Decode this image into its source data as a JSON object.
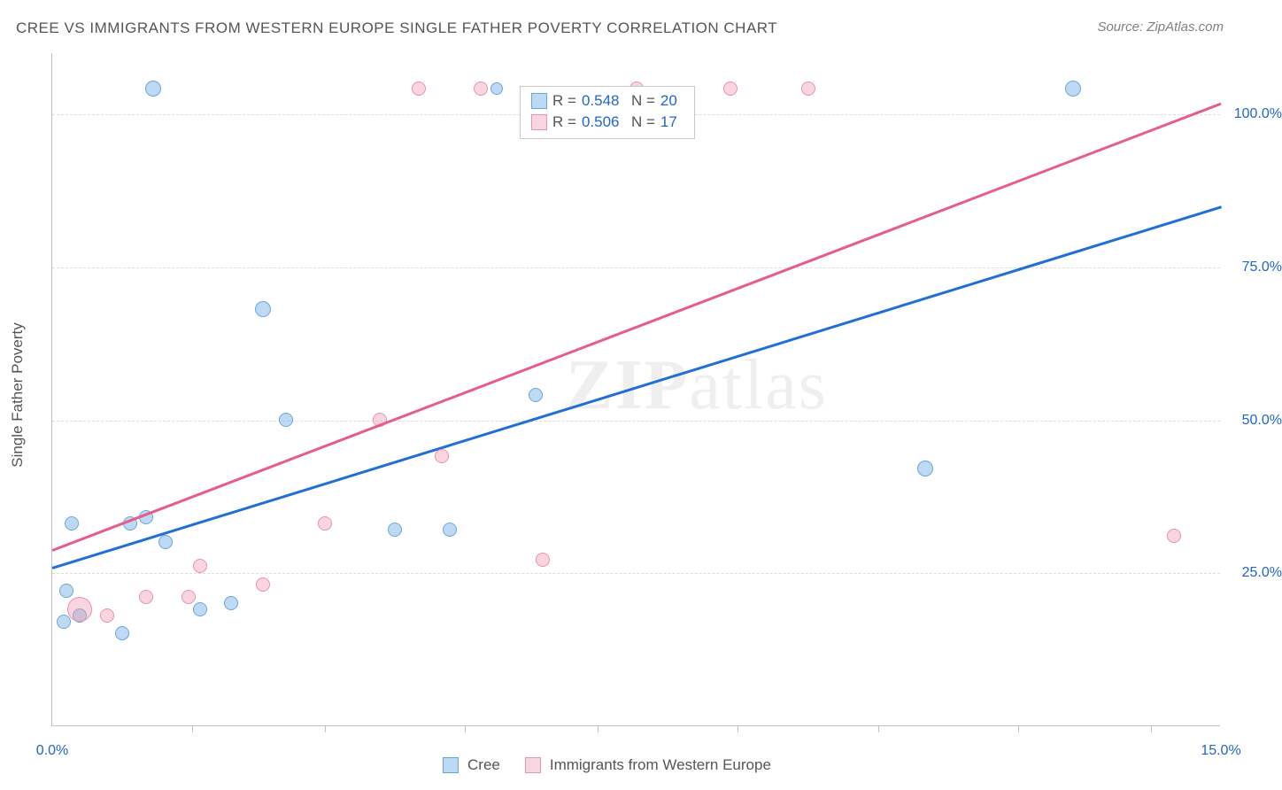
{
  "title": "CREE VS IMMIGRANTS FROM WESTERN EUROPE SINGLE FATHER POVERTY CORRELATION CHART",
  "source": "Source: ZipAtlas.com",
  "ylabel": "Single Father Poverty",
  "xmin_label": "0.0%",
  "xmax_label": "15.0%",
  "watermark_1": "ZIP",
  "watermark_2": "atlas",
  "chart": {
    "type": "scatter",
    "xlim": [
      0,
      15
    ],
    "ylim": [
      0,
      110
    ],
    "y_ticks": [
      25,
      50,
      75,
      100
    ],
    "y_tick_labels": [
      "25.0%",
      "50.0%",
      "75.0%",
      "100.0%"
    ],
    "x_ticks": [
      1.8,
      3.5,
      5.3,
      7.0,
      8.8,
      10.6,
      12.4,
      14.1
    ],
    "background_color": "#ffffff",
    "grid_color": "#dcdcdc",
    "axis_color": "#c0c0c0",
    "tick_label_color": "#2066c8",
    "series": [
      {
        "name": "Cree",
        "fill": "rgba(110,170,230,0.45)",
        "stroke": "#6aa6de",
        "trend_color": "#1f6fd6",
        "R": "0.548",
        "N": "20",
        "trend": {
          "x1": 0,
          "y1": 26,
          "x2": 15,
          "y2": 85
        },
        "points": [
          {
            "x": 0.15,
            "y": 17,
            "r": 8
          },
          {
            "x": 0.18,
            "y": 22,
            "r": 8
          },
          {
            "x": 0.25,
            "y": 33,
            "r": 8
          },
          {
            "x": 0.35,
            "y": 18,
            "r": 8
          },
          {
            "x": 0.9,
            "y": 15,
            "r": 8
          },
          {
            "x": 1.0,
            "y": 33,
            "r": 8
          },
          {
            "x": 1.2,
            "y": 34,
            "r": 8
          },
          {
            "x": 1.45,
            "y": 30,
            "r": 8
          },
          {
            "x": 1.3,
            "y": 104,
            "r": 9
          },
          {
            "x": 1.9,
            "y": 19,
            "r": 8
          },
          {
            "x": 2.3,
            "y": 20,
            "r": 8
          },
          {
            "x": 2.7,
            "y": 68,
            "r": 9
          },
          {
            "x": 3.0,
            "y": 50,
            "r": 8
          },
          {
            "x": 4.4,
            "y": 32,
            "r": 8
          },
          {
            "x": 5.1,
            "y": 32,
            "r": 8
          },
          {
            "x": 5.7,
            "y": 104,
            "r": 7
          },
          {
            "x": 6.2,
            "y": 54,
            "r": 8
          },
          {
            "x": 11.2,
            "y": 42,
            "r": 9
          },
          {
            "x": 13.1,
            "y": 104,
            "r": 9
          }
        ]
      },
      {
        "name": "Immigrants from Western Europe",
        "fill": "rgba(240,150,175,0.40)",
        "stroke": "#e893ac",
        "trend_color": "#e65c8a",
        "R": "0.506",
        "N": "17",
        "trend": {
          "x1": 0,
          "y1": 29,
          "x2": 15,
          "y2": 102
        },
        "points": [
          {
            "x": 0.35,
            "y": 19,
            "r": 14
          },
          {
            "x": 0.7,
            "y": 18,
            "r": 8
          },
          {
            "x": 1.2,
            "y": 21,
            "r": 8
          },
          {
            "x": 1.75,
            "y": 21,
            "r": 8
          },
          {
            "x": 1.9,
            "y": 26,
            "r": 8
          },
          {
            "x": 2.7,
            "y": 23,
            "r": 8
          },
          {
            "x": 3.5,
            "y": 33,
            "r": 8
          },
          {
            "x": 4.2,
            "y": 50,
            "r": 8
          },
          {
            "x": 4.7,
            "y": 104,
            "r": 8
          },
          {
            "x": 5.0,
            "y": 44,
            "r": 8
          },
          {
            "x": 5.5,
            "y": 104,
            "r": 8
          },
          {
            "x": 6.3,
            "y": 27,
            "r": 8
          },
          {
            "x": 7.5,
            "y": 104,
            "r": 8
          },
          {
            "x": 8.7,
            "y": 104,
            "r": 8
          },
          {
            "x": 9.7,
            "y": 104,
            "r": 8
          },
          {
            "x": 14.4,
            "y": 31,
            "r": 8
          }
        ]
      }
    ]
  },
  "legend_top": {
    "rows": [
      {
        "swatch_fill": "rgba(110,170,230,0.45)",
        "swatch_border": "#6aa6de",
        "R_label": "R =",
        "R": "0.548",
        "N_label": "N =",
        "N": "20"
      },
      {
        "swatch_fill": "rgba(240,150,175,0.40)",
        "swatch_border": "#e893ac",
        "R_label": "R =",
        "R": "0.506",
        "N_label": "N =",
        "N": "17"
      }
    ]
  },
  "legend_bottom": {
    "items": [
      {
        "swatch_fill": "rgba(110,170,230,0.45)",
        "swatch_border": "#6aa6de",
        "label": "Cree"
      },
      {
        "swatch_fill": "rgba(240,150,175,0.40)",
        "swatch_border": "#e893ac",
        "label": "Immigrants from Western Europe"
      }
    ]
  }
}
